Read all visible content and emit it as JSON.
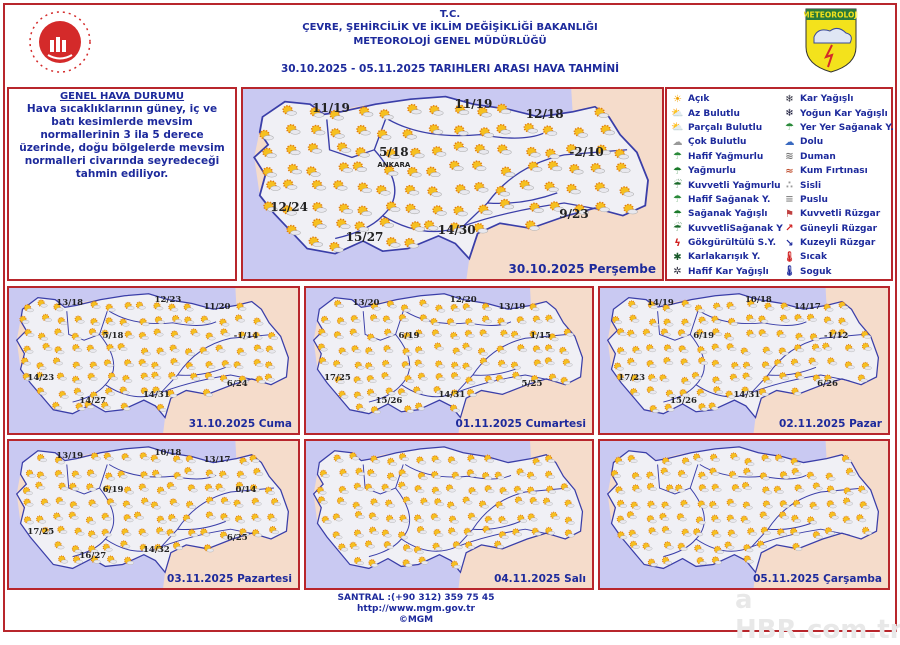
{
  "header": {
    "line1": "T.C.",
    "line2": "ÇEVRE, ŞEHİRCİLİK VE İKLİM DEĞİŞİKLİĞİ BAKANLIĞI",
    "line3": "METEOROLOJİ  GENEL  MÜDÜRLÜĞÜ",
    "range": "30.10.2025  -  05.11.2025    TARIHLERI  ARASI  HAVA  TAHMİNİ",
    "logo_right_text": "METEOROLOJİ"
  },
  "general": {
    "title": "GENEL HAVA DURUMU",
    "text": "Hava sıcaklıklarının güney, iç ve batı kesimlerde mevsim normallerinin 3 ila 5 derece üzerinde, doğu bölgelerde mevsim normalleri civarında seyredeceği tahmin ediliyor."
  },
  "main_map": {
    "date": "30.10.2025 Perşembe",
    "temps": [
      "11/19",
      "11/19",
      "12/18",
      "5/18",
      "-2/10",
      "12/24",
      "15/27",
      "14/30",
      "9/23"
    ],
    "city_label": "ANKARA"
  },
  "panels": [
    {
      "date": "31.10.2025 Cuma",
      "temps": [
        "13/18",
        "12/23",
        "11/20",
        "5/18",
        "-1/14",
        "14/23",
        "14/27",
        "14/31",
        "6/24"
      ]
    },
    {
      "date": "01.11.2025 Cumartesi",
      "temps": [
        "13/20",
        "12/20",
        "13/19",
        "6/19",
        "1/15",
        "17/25",
        "15/26",
        "14/31",
        "5/25"
      ]
    },
    {
      "date": "02.11.2025 Pazar",
      "temps": [
        "14/19",
        "10/18",
        "14/17",
        "6/19",
        "-1/12",
        "17/23",
        "15/26",
        "14/31",
        "6/26"
      ]
    },
    {
      "date": "03.11.2025 Pazartesi",
      "temps": [
        "13/19",
        "10/18",
        "13/17",
        "6/19",
        "0/14",
        "17/25",
        "16/27",
        "14/32",
        "6/25"
      ]
    },
    {
      "date": "04.11.2025 Salı",
      "temps": []
    },
    {
      "date": "05.11.2025 Çarşamba",
      "temps": []
    }
  ],
  "legend": [
    {
      "label": "Açık",
      "icon": "sun-icon"
    },
    {
      "label": "Kar Yağışlı",
      "icon": "snow-icon"
    },
    {
      "label": "Az Bulutlu",
      "icon": "sun-cloud-icon"
    },
    {
      "label": "Yoğun Kar Yağışlı",
      "icon": "heavy-snow-icon"
    },
    {
      "label": "Parçalı Bulutlu",
      "icon": "partly-cloudy-icon"
    },
    {
      "label": "Yer Yer Sağanak Y.",
      "icon": "local-shower-icon"
    },
    {
      "label": "Çok Bulutlu",
      "icon": "cloudy-icon"
    },
    {
      "label": "Dolu",
      "icon": "hail-icon"
    },
    {
      "label": "Hafif Yağmurlu",
      "icon": "light-rain-icon"
    },
    {
      "label": "Duman",
      "icon": "smoke-icon"
    },
    {
      "label": "Yağmurlu",
      "icon": "rain-icon"
    },
    {
      "label": "Kum Fırtınası",
      "icon": "sandstorm-icon"
    },
    {
      "label": "Kuvvetli Yağmurlu",
      "icon": "heavy-rain-icon"
    },
    {
      "label": "Sisli",
      "icon": "fog-icon"
    },
    {
      "label": "Hafif Sağanak Y.",
      "icon": "light-shower-icon"
    },
    {
      "label": "Puslu",
      "icon": "haze-icon"
    },
    {
      "label": "Sağanak Yağışlı",
      "icon": "shower-icon"
    },
    {
      "label": "Kuvvetli Rüzgar",
      "icon": "strong-wind-icon"
    },
    {
      "label": "KuvvetliSağanak Y",
      "icon": "heavy-shower-icon"
    },
    {
      "label": "Güneyli Rüzgar",
      "icon": "south-wind-icon"
    },
    {
      "label": "Gökgürültülü S.Y.",
      "icon": "thunderstorm-icon"
    },
    {
      "label": "Kuzeyli Rüzgar",
      "icon": "north-wind-icon"
    },
    {
      "label": "Karlakarışık Y.",
      "icon": "sleet-icon"
    },
    {
      "label": "Sıcak",
      "icon": "hot-icon"
    },
    {
      "label": "Hafif Kar Yağışlı",
      "icon": "light-snow-icon"
    },
    {
      "label": "Soguk",
      "icon": "cold-icon"
    }
  ],
  "footer": {
    "phone": "SANTRAL :(+90 312) 359 75 45",
    "url": "http://www.mgm.gov.tr",
    "copy": "©MGM"
  },
  "watermark": "a HBR.com.tr",
  "colors": {
    "border": "#b8262c",
    "text": "#1d2a9c",
    "sea": "#c9c9f2",
    "land": "#f0f0f5",
    "neighbors": "#f5dccb"
  }
}
